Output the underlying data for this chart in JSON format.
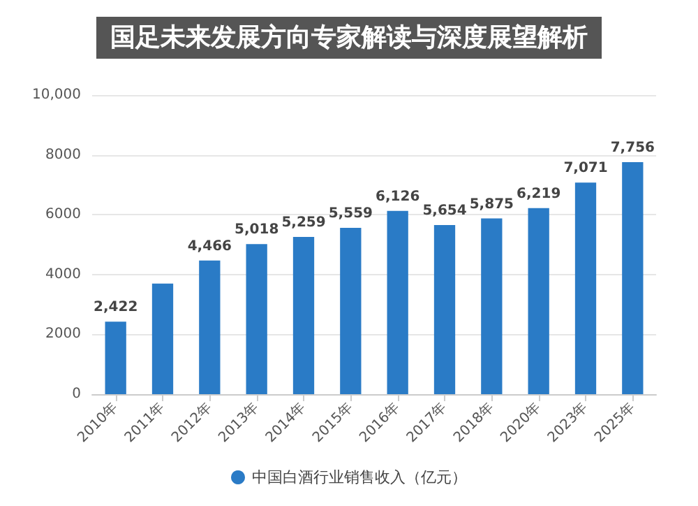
{
  "chart_data": {
    "type": "bar",
    "title": "国足未来发展方向专家解读与深度展望解析",
    "categories": [
      "2010年",
      "2011年",
      "2012年",
      "2013年",
      "2014年",
      "2015年",
      "2016年",
      "2017年",
      "2018年",
      "2020年",
      "2023年",
      "2025年"
    ],
    "series": [
      {
        "name": "中国白酒行业销售收入（亿元）",
        "color": "#2a7bc6",
        "values": [
          2422,
          3700,
          4466,
          5018,
          5259,
          5559,
          6126,
          5654,
          5875,
          6219,
          7071,
          7756
        ],
        "value_labels": [
          "2,422",
          null,
          "4,466",
          "5,018",
          "5,259",
          "5,559",
          "6,126",
          "5,654",
          "5,875",
          "6,219",
          "7,071",
          "7,756"
        ]
      }
    ],
    "ylim": [
      0,
      10000
    ],
    "yticks": [
      0,
      2000,
      4000,
      6000,
      8000,
      {
        "value": 10000,
        "label": "10,000"
      }
    ],
    "grid": "y",
    "legend": "bottom"
  }
}
